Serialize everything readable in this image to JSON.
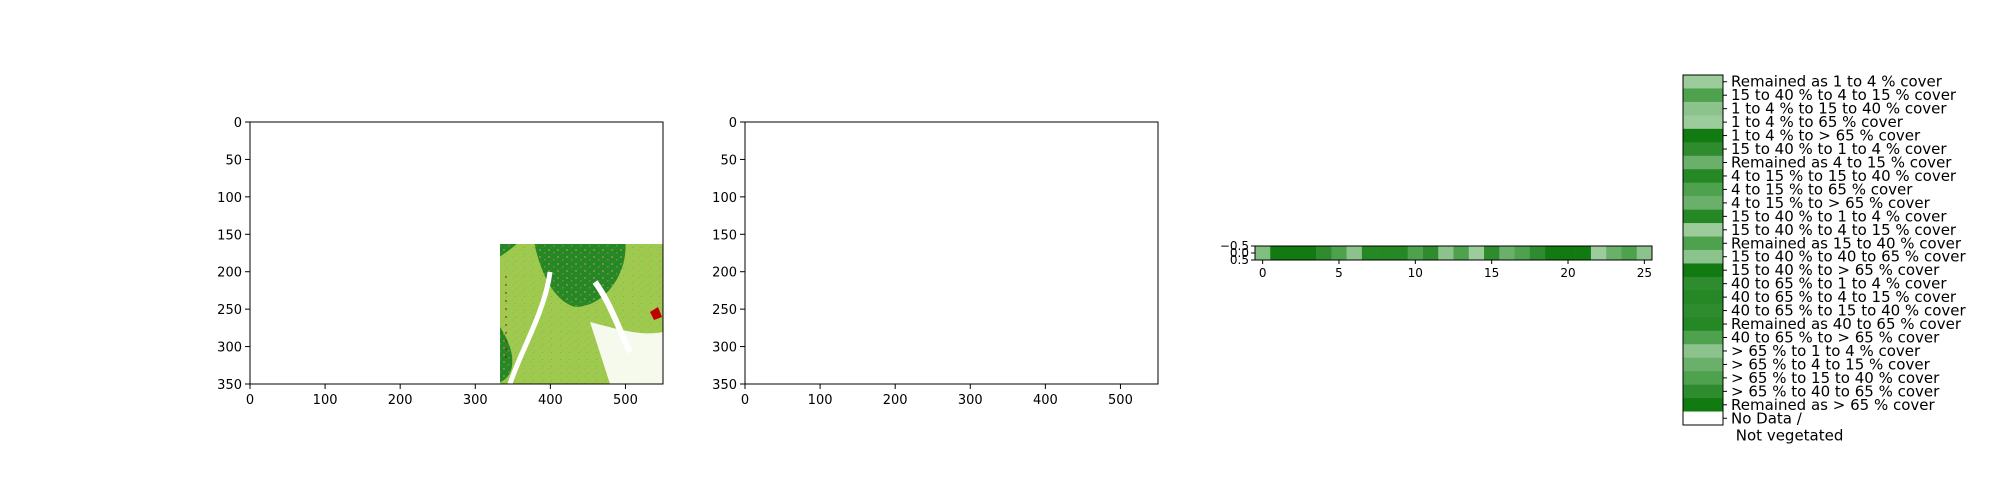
{
  "chart_data": [
    {
      "type": "heatmap",
      "title": "",
      "xlabel": "",
      "ylabel": "",
      "xlim": [
        0,
        550
      ],
      "ylim": [
        350,
        0
      ],
      "xticks": [
        "0",
        "100",
        "200",
        "300",
        "400",
        "500"
      ],
      "yticks": [
        "0",
        "50",
        "100",
        "150",
        "200",
        "250",
        "300",
        "350"
      ]
    },
    {
      "type": "heatmap",
      "title": "",
      "xlabel": "",
      "ylabel": "",
      "xlim": [
        0,
        550
      ],
      "ylim": [
        350,
        0
      ],
      "xticks": [
        "0",
        "100",
        "200",
        "300",
        "400",
        "500"
      ],
      "yticks": [
        "0",
        "50",
        "100",
        "150",
        "200",
        "250",
        "300",
        "350"
      ]
    },
    {
      "type": "heatmap",
      "title": "",
      "xlim": [
        -0.5,
        25.5
      ],
      "ylim": [
        0.5,
        -0.5
      ],
      "xticks": [
        "0",
        "5",
        "10",
        "15",
        "20",
        "25"
      ],
      "yticks": [
        "−0.5",
        "0.0",
        "0.5"
      ],
      "values": [
        "#7fbf7f",
        "#117a11",
        "#117a11",
        "#117a11",
        "#2e8b2e",
        "#4ea24e",
        "#8cc38c",
        "#258825",
        "#258825",
        "#258825",
        "#4ea24e",
        "#2e8b2e",
        "#8cc38c",
        "#4ea24e",
        "#9ccb9c",
        "#2e8b2e",
        "#6ab06a",
        "#4ea24e",
        "#2e8b2e",
        "#117a11",
        "#117a11",
        "#117a11",
        "#9ccb9c",
        "#6ab06a",
        "#4ea24e",
        "#8cc38c"
      ]
    }
  ],
  "legend": {
    "entries": [
      "Remained as 1 to 4 % cover",
      "15 to 40 % to 4 to 15 % cover",
      "1 to 4 % to 15 to 40 % cover",
      "1 to 4 % to 65 % cover",
      "1 to 4 % to > 65 % cover",
      "15 to 40 % to 1 to 4 % cover",
      "Remained as 4 to 15 % cover",
      "4 to 15 % to 15 to 40 % cover",
      "4 to 15 % to 65 % cover",
      "4 to 15 % to > 65 % cover",
      "15 to 40 % to 1 to 4 % cover",
      "15 to 40 % to 4 to 15 % cover",
      "Remained as 15 to 40 % cover",
      "15 to 40 % to 40 to 65 % cover",
      "15 to 40 % to > 65 % cover",
      "40 to 65 % to 1 to 4 % cover",
      "40 to 65 % to 4 to 15 % cover",
      "40 to 65 % to 15 to 40 % cover",
      "Remained as 40 to 65 % cover",
      "40 to 65 % to > 65 % cover",
      "> 65 % to 1 to 4 % cover",
      "> 65 % to 4 to 15 % cover",
      "> 65 % to 15 to 40 % cover",
      "> 65 % to 40 to 65 % cover",
      "Remained as > 65 % cover",
      "No Data /\n Not vegetated"
    ],
    "colors": [
      "#9ccb9c",
      "#4ea24e",
      "#8cc38c",
      "#9ccb9c",
      "#117a11",
      "#2e8b2e",
      "#6ab06a",
      "#258825",
      "#4ea24e",
      "#6ab06a",
      "#258825",
      "#9ccb9c",
      "#4ea24e",
      "#8cc38c",
      "#117a11",
      "#2e8b2e",
      "#258825",
      "#2e8b2e",
      "#258825",
      "#4ea24e",
      "#8cc38c",
      "#6ab06a",
      "#4ea24e",
      "#2e8b2e",
      "#117a11",
      "#ffffff"
    ]
  },
  "colors": {
    "light_green": "#9ccb4e",
    "dark_green": "#258825",
    "red": "#c00000",
    "tan": "#c8a070",
    "water": "#ffffff"
  }
}
